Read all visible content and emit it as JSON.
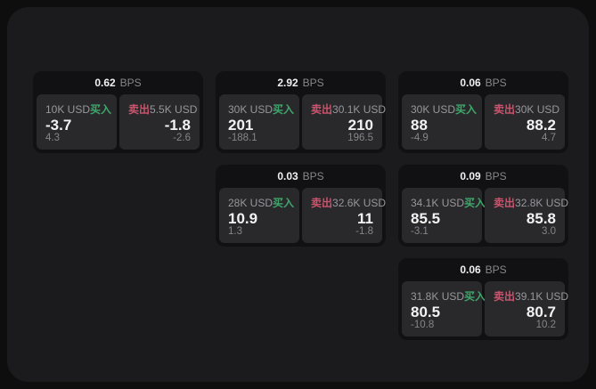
{
  "labels": {
    "bps_unit": "BPS",
    "buy": "买入",
    "sell": "卖出"
  },
  "colors": {
    "buy": "#3fa76b",
    "sell": "#c9546d",
    "panel_bg": "#29292c",
    "card_bg": "#111113",
    "page_bg": "#1b1b1d",
    "outer_bg": "#0e0e0f"
  },
  "cards": [
    {
      "bps": "0.62",
      "buy": {
        "size": "10K USD",
        "price": "-3.7",
        "delta": "4.3"
      },
      "sell": {
        "size": "5.5K USD",
        "price": "-1.8",
        "delta": "-2.6"
      }
    },
    {
      "bps": "2.92",
      "buy": {
        "size": "30K USD",
        "price": "201",
        "delta": "-188.1"
      },
      "sell": {
        "size": "30.1K USD",
        "price": "210",
        "delta": "196.5"
      }
    },
    {
      "bps": "0.06",
      "buy": {
        "size": "30K USD",
        "price": "88",
        "delta": "-4.9"
      },
      "sell": {
        "size": "30K USD",
        "price": "88.2",
        "delta": "4.7"
      }
    },
    {
      "bps": "0.03",
      "buy": {
        "size": "28K USD",
        "price": "10.9",
        "delta": "1.3"
      },
      "sell": {
        "size": "32.6K USD",
        "price": "11",
        "delta": "-1.8"
      }
    },
    {
      "bps": "0.09",
      "buy": {
        "size": "34.1K USD",
        "price": "85.5",
        "delta": "-3.1"
      },
      "sell": {
        "size": "32.8K USD",
        "price": "85.8",
        "delta": "3.0"
      }
    },
    {
      "bps": "0.06",
      "buy": {
        "size": "31.8K USD",
        "price": "80.5",
        "delta": "-10.8"
      },
      "sell": {
        "size": "39.1K USD",
        "price": "80.7",
        "delta": "10.2"
      }
    }
  ]
}
